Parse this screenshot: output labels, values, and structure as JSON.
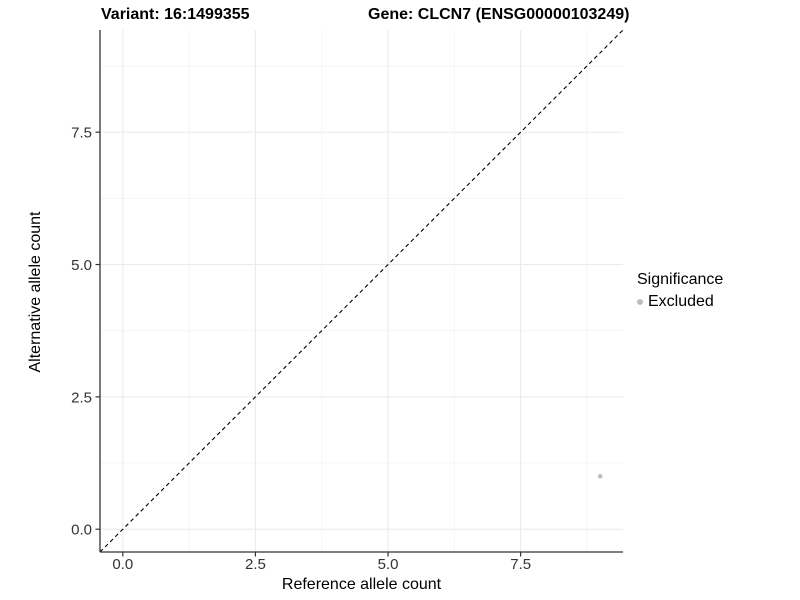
{
  "chart_data": {
    "type": "scatter",
    "title_left": "Variant: 16:1499355",
    "title_right": "Gene: CLCN7 (ENSG00000103249)",
    "xlabel": "Reference allele count",
    "ylabel": "Alternative allele count",
    "xlim": [
      -0.43,
      9.43
    ],
    "ylim": [
      -0.43,
      9.43
    ],
    "x_major_ticks": [
      0.0,
      2.5,
      5.0,
      7.5
    ],
    "y_major_ticks": [
      0.0,
      2.5,
      5.0,
      7.5
    ],
    "x_minor_gridlines": [
      1.25,
      3.75,
      6.25,
      8.75
    ],
    "y_minor_gridlines": [
      1.25,
      3.75,
      6.25,
      8.75
    ],
    "tick_decimals": 1,
    "grid": {
      "major_color": "#ebebeb",
      "minor_color": "#f4f4f4"
    },
    "axis_line_color": "#333333",
    "tick_label_color": "#333333",
    "reference_line": {
      "kind": "identity-abline",
      "slope": 1,
      "intercept": 0,
      "style": "dashed",
      "color": "#000000"
    },
    "series": [
      {
        "name": "Excluded",
        "color": "#bebebe",
        "points": [
          {
            "x": 9,
            "y": 1
          }
        ]
      }
    ],
    "legend": {
      "title": "Significance",
      "position": "right",
      "items": [
        {
          "label": "Excluded",
          "color": "#bebebe"
        }
      ]
    }
  }
}
